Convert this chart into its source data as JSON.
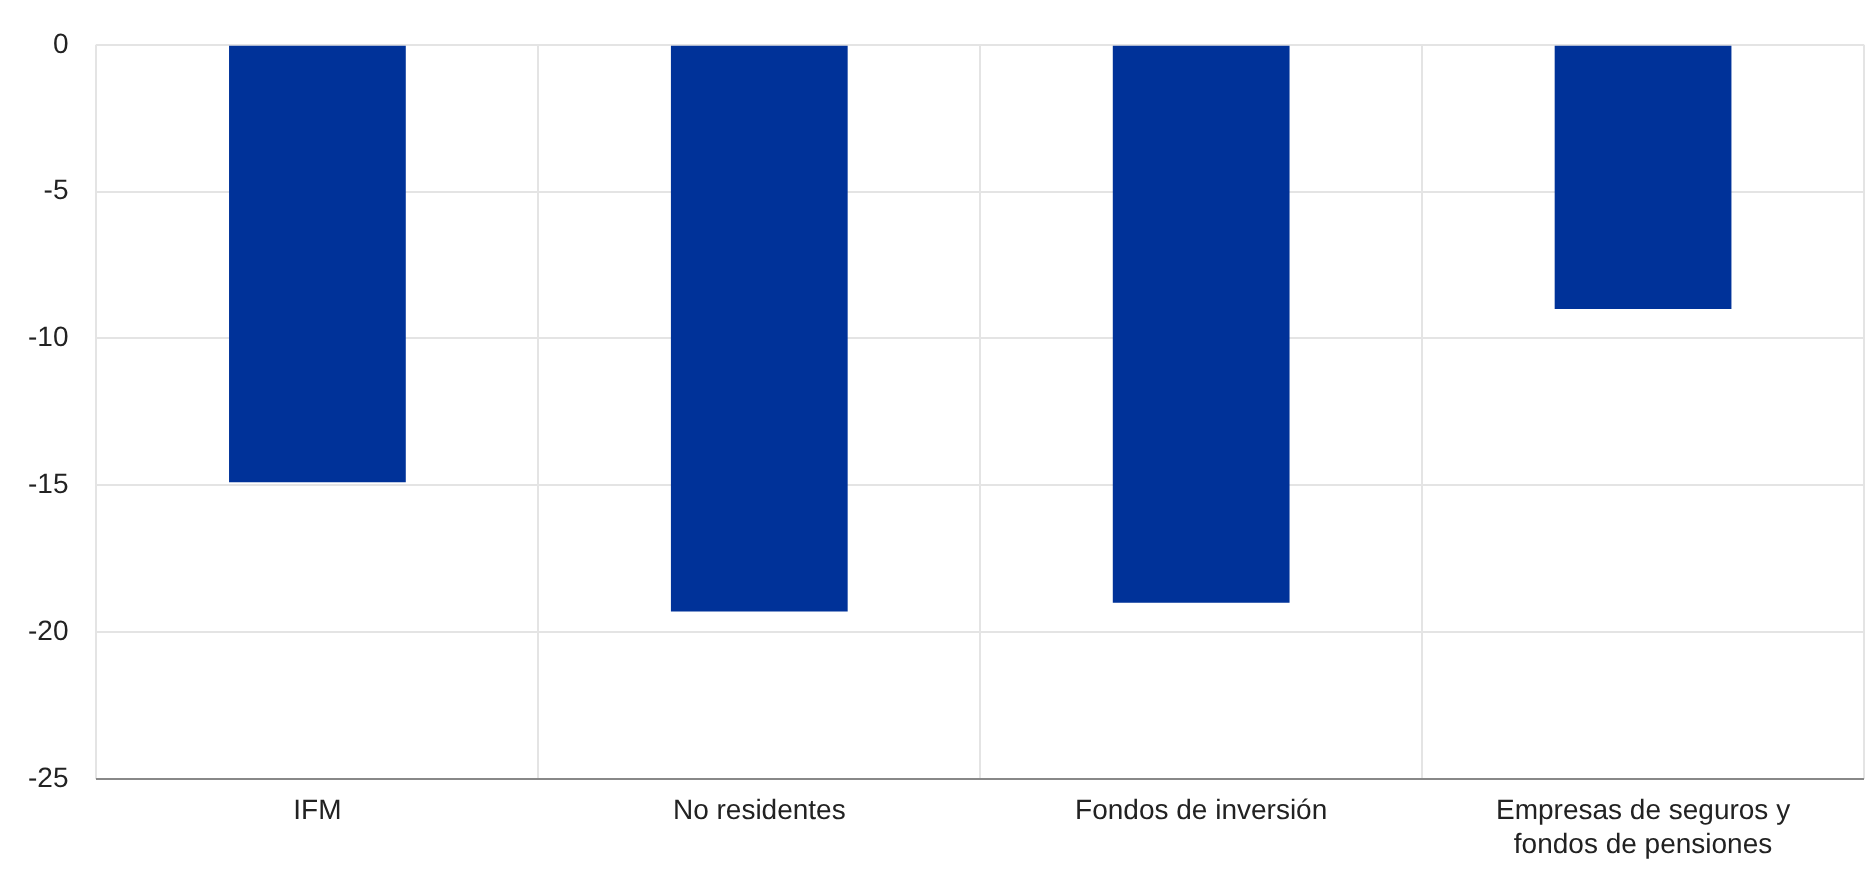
{
  "chart_data": {
    "type": "bar",
    "categories": [
      "IFM",
      "No residentes",
      "Fondos de inversión",
      "Empresas de seguros y fondos de pensiones"
    ],
    "values": [
      -14.9,
      -19.3,
      -19.0,
      -9.0
    ],
    "color": "#003299",
    "ylim": [
      -25,
      0
    ],
    "yticks": [
      -25,
      -20,
      -15,
      -10,
      -5,
      0
    ],
    "grid": true
  }
}
